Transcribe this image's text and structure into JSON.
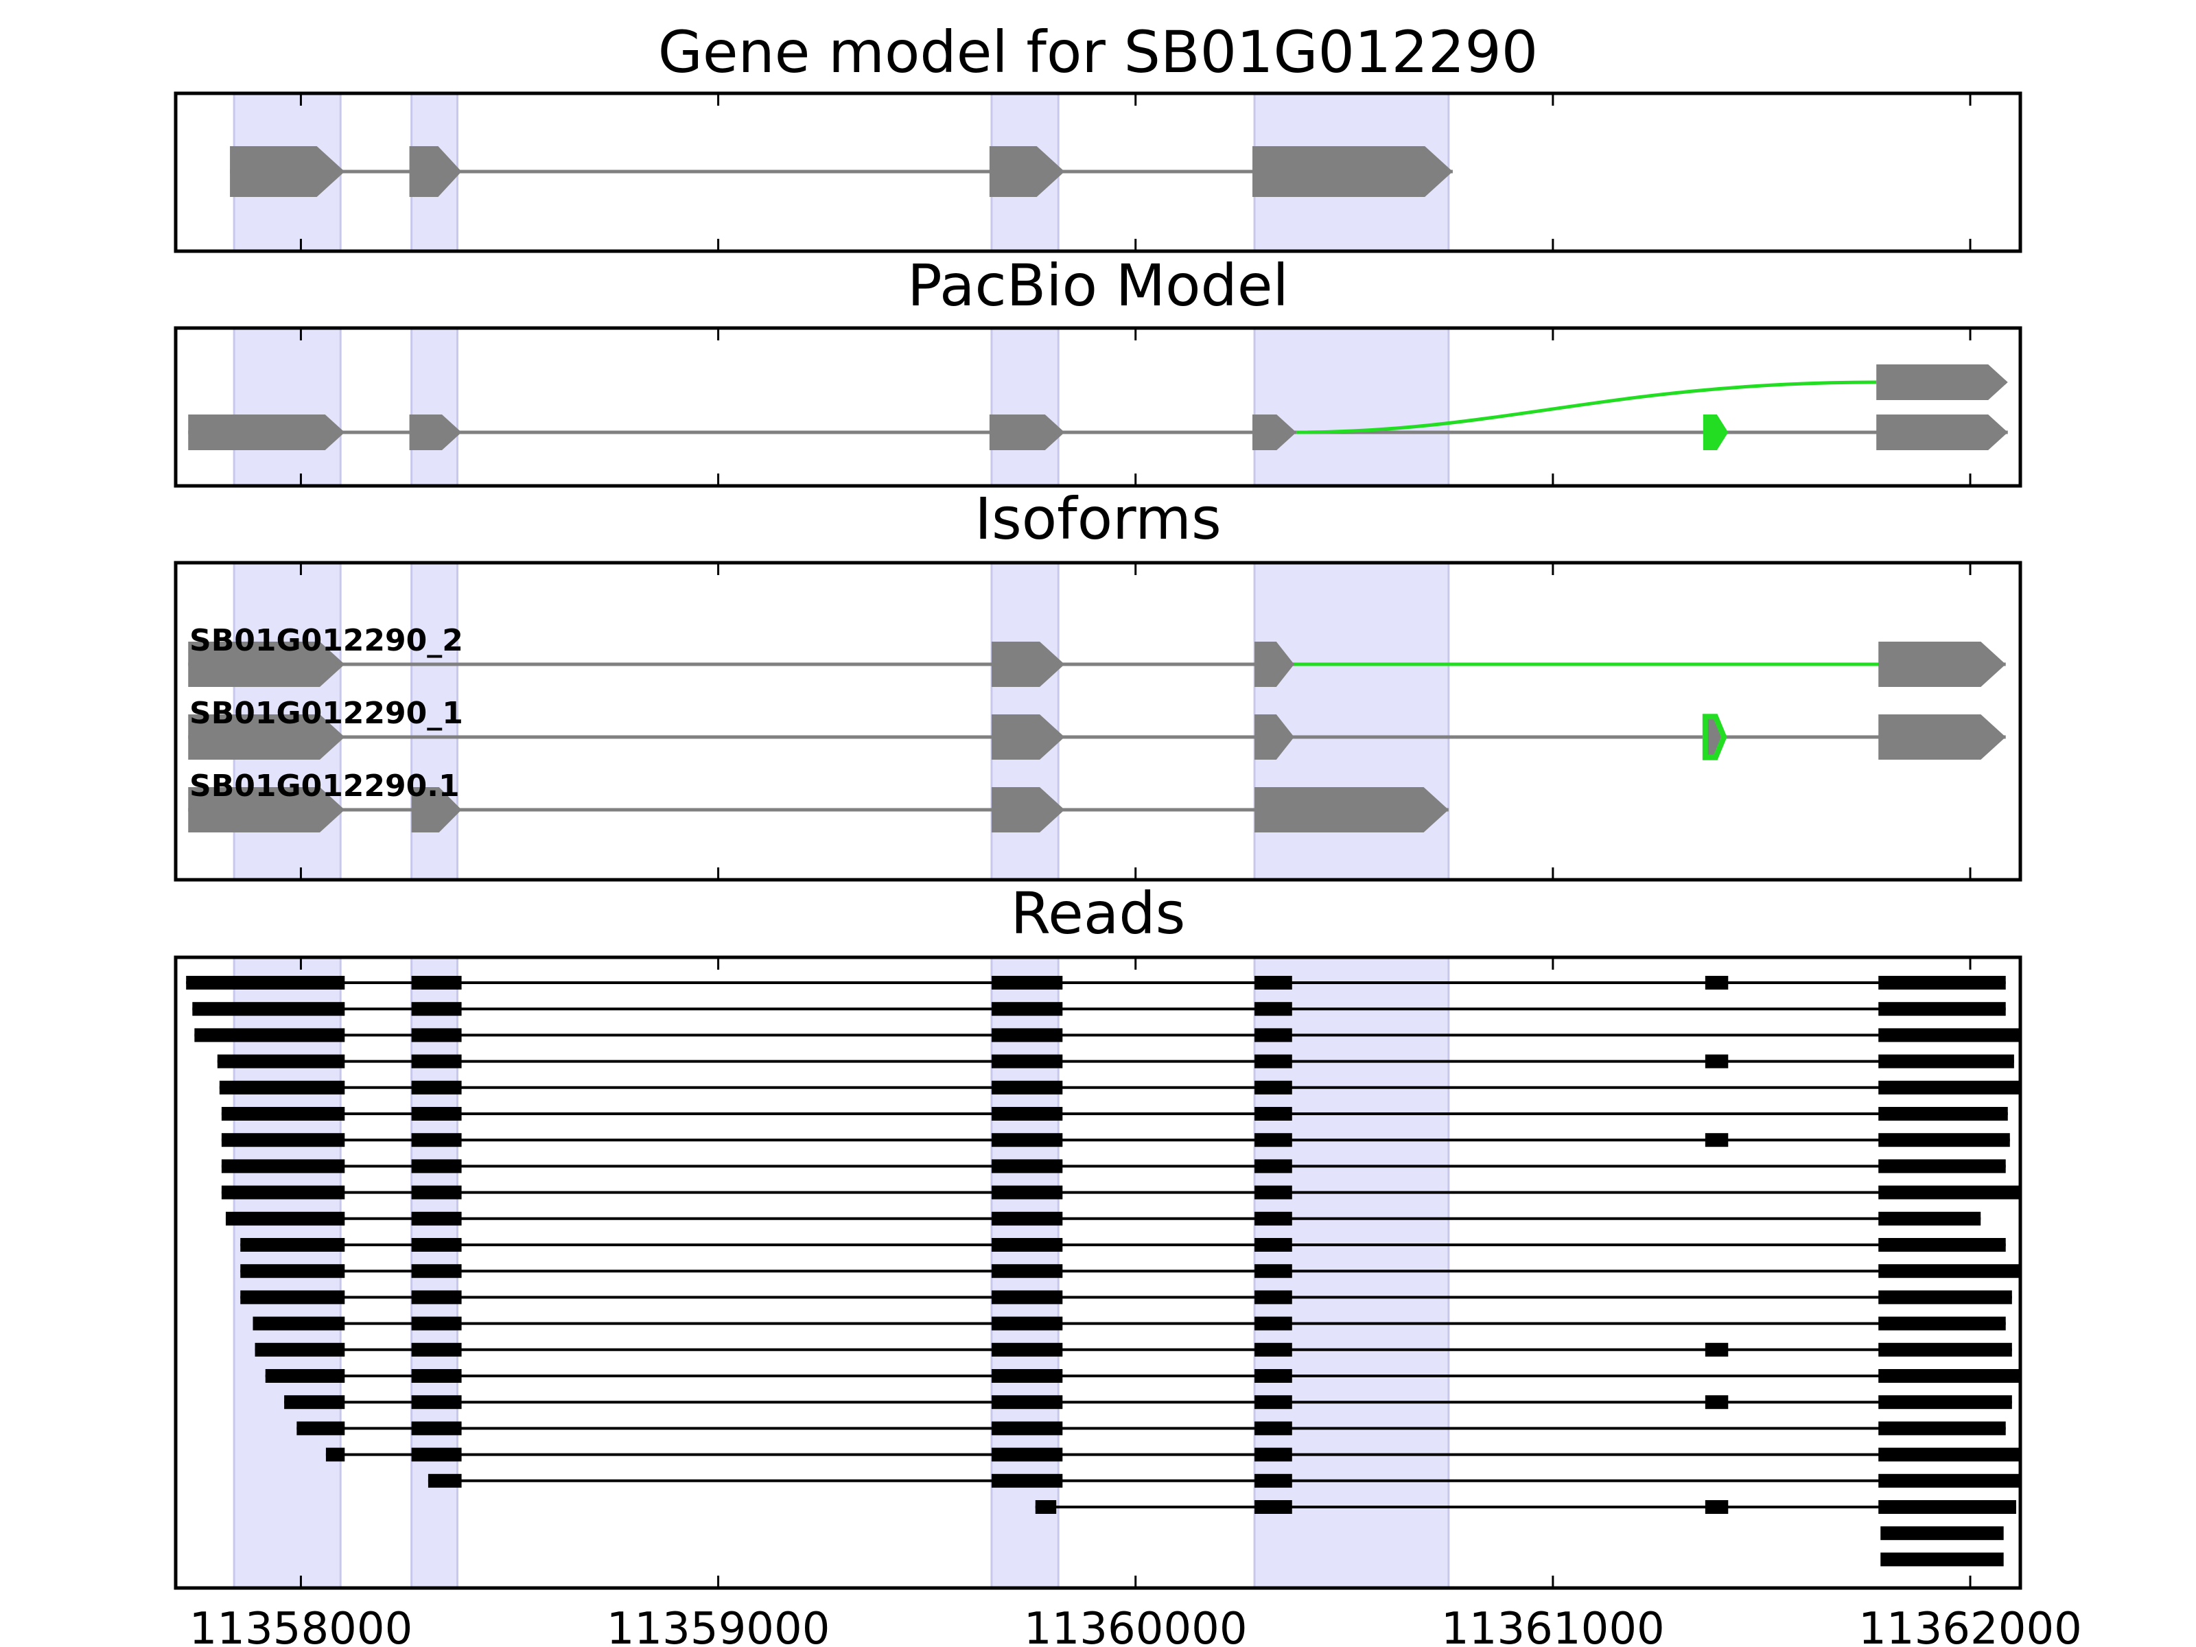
{
  "figure": {
    "panels": [
      {
        "id": "gene",
        "title": "Gene model for SB01G012290"
      },
      {
        "id": "pacbio",
        "title": "PacBio Model"
      },
      {
        "id": "isoforms",
        "title": "Isoforms"
      },
      {
        "id": "reads",
        "title": "Reads"
      }
    ],
    "x_axis": {
      "range": [
        11357700,
        11362120
      ],
      "ticks": [
        11358000,
        11359000,
        11360000,
        11361000,
        11362000
      ],
      "tick_labels": [
        "11358000",
        "11359000",
        "11360000",
        "11361000",
        "11362000"
      ]
    },
    "highlight_regions": [
      [
        11357840,
        11358095
      ],
      [
        11358265,
        11358375
      ],
      [
        11359655,
        11359815
      ],
      [
        11360285,
        11360750
      ]
    ],
    "gene_model": {
      "exons": [
        [
          11357830,
          11358105
        ],
        [
          11358260,
          11358385
        ],
        [
          11359650,
          11359830
        ],
        [
          11360280,
          11360760
        ]
      ]
    },
    "pacbio_model": {
      "main_exons": [
        [
          11357730,
          11358105
        ],
        [
          11358260,
          11358385
        ],
        [
          11359650,
          11359830
        ],
        [
          11360280,
          11360385
        ],
        [
          11361360,
          11361420
        ],
        [
          11361775,
          11362090
        ]
      ],
      "novel_exon": [
        11361360,
        11361420
      ],
      "alt_exon": [
        11361775,
        11362090
      ],
      "splice_start": 11360385
    },
    "isoforms": [
      {
        "label": "SB01G012290_2",
        "exons": [
          [
            11357730,
            11358105
          ],
          [
            11359655,
            11359830
          ],
          [
            11360285,
            11360380
          ],
          [
            11361780,
            11362085
          ]
        ],
        "novel_junction": [
          11360380,
          11361780
        ]
      },
      {
        "label": "SB01G012290_1",
        "exons": [
          [
            11357730,
            11358105
          ],
          [
            11359655,
            11359830
          ],
          [
            11360285,
            11360380
          ],
          [
            11361365,
            11361410
          ],
          [
            11361780,
            11362085
          ]
        ],
        "novel_exon": [
          11361365,
          11361410
        ]
      },
      {
        "label": "SB01G012290.1",
        "exons": [
          [
            11357730,
            11358105
          ],
          [
            11358265,
            11358385
          ],
          [
            11359655,
            11359830
          ],
          [
            11360285,
            11360750
          ]
        ]
      }
    ],
    "reads": [
      [
        [
          11357725,
          11358105
        ],
        [
          11358265,
          11358385
        ],
        [
          11359655,
          11359825
        ],
        [
          11360285,
          11360375
        ],
        [
          11361365,
          11361420
        ],
        [
          11361780,
          11362085
        ]
      ],
      [
        [
          11357740,
          11358105
        ],
        [
          11358265,
          11358385
        ],
        [
          11359655,
          11359825
        ],
        [
          11360285,
          11360375
        ],
        [
          11361780,
          11362085
        ]
      ],
      [
        [
          11357745,
          11358105
        ],
        [
          11358265,
          11358385
        ],
        [
          11359655,
          11359825
        ],
        [
          11360285,
          11360375
        ],
        [
          11361780,
          11362120
        ]
      ],
      [
        [
          11357800,
          11358105
        ],
        [
          11358265,
          11358385
        ],
        [
          11359655,
          11359825
        ],
        [
          11360285,
          11360375
        ],
        [
          11361365,
          11361420
        ],
        [
          11361780,
          11362105
        ]
      ],
      [
        [
          11357805,
          11358105
        ],
        [
          11358265,
          11358385
        ],
        [
          11359655,
          11359825
        ],
        [
          11360285,
          11360375
        ],
        [
          11361780,
          11362120
        ]
      ],
      [
        [
          11357810,
          11358105
        ],
        [
          11358265,
          11358385
        ],
        [
          11359655,
          11359825
        ],
        [
          11360285,
          11360375
        ],
        [
          11361780,
          11362090
        ]
      ],
      [
        [
          11357810,
          11358105
        ],
        [
          11358265,
          11358385
        ],
        [
          11359655,
          11359825
        ],
        [
          11360285,
          11360375
        ],
        [
          11361365,
          11361420
        ],
        [
          11361780,
          11362095
        ]
      ],
      [
        [
          11357810,
          11358105
        ],
        [
          11358265,
          11358385
        ],
        [
          11359655,
          11359825
        ],
        [
          11360285,
          11360375
        ],
        [
          11361780,
          11362085
        ]
      ],
      [
        [
          11357810,
          11358105
        ],
        [
          11358265,
          11358385
        ],
        [
          11359655,
          11359825
        ],
        [
          11360285,
          11360375
        ],
        [
          11361780,
          11362120
        ]
      ],
      [
        [
          11357820,
          11358105
        ],
        [
          11358265,
          11358385
        ],
        [
          11359655,
          11359825
        ],
        [
          11360285,
          11360375
        ],
        [
          11361780,
          11362025
        ]
      ],
      [
        [
          11357855,
          11358105
        ],
        [
          11358265,
          11358385
        ],
        [
          11359655,
          11359825
        ],
        [
          11360285,
          11360375
        ],
        [
          11361780,
          11362085
        ]
      ],
      [
        [
          11357855,
          11358105
        ],
        [
          11358265,
          11358385
        ],
        [
          11359655,
          11359825
        ],
        [
          11360285,
          11360375
        ],
        [
          11361780,
          11362120
        ]
      ],
      [
        [
          11357855,
          11358105
        ],
        [
          11358265,
          11358385
        ],
        [
          11359655,
          11359825
        ],
        [
          11360285,
          11360375
        ],
        [
          11361780,
          11362100
        ]
      ],
      [
        [
          11357885,
          11358105
        ],
        [
          11358265,
          11358385
        ],
        [
          11359655,
          11359825
        ],
        [
          11360285,
          11360375
        ],
        [
          11361780,
          11362085
        ]
      ],
      [
        [
          11357890,
          11358105
        ],
        [
          11358265,
          11358385
        ],
        [
          11359655,
          11359825
        ],
        [
          11360285,
          11360375
        ],
        [
          11361365,
          11361420
        ],
        [
          11361780,
          11362100
        ]
      ],
      [
        [
          11357915,
          11358105
        ],
        [
          11358265,
          11358385
        ],
        [
          11359655,
          11359825
        ],
        [
          11360285,
          11360375
        ],
        [
          11361780,
          11362120
        ]
      ],
      [
        [
          11357960,
          11358105
        ],
        [
          11358265,
          11358385
        ],
        [
          11359655,
          11359825
        ],
        [
          11360285,
          11360375
        ],
        [
          11361365,
          11361420
        ],
        [
          11361780,
          11362100
        ]
      ],
      [
        [
          11357990,
          11358105
        ],
        [
          11358265,
          11358385
        ],
        [
          11359655,
          11359825
        ],
        [
          11360285,
          11360375
        ],
        [
          11361780,
          11362085
        ]
      ],
      [
        [
          11358060,
          11358105
        ],
        [
          11358265,
          11358385
        ],
        [
          11359655,
          11359825
        ],
        [
          11360285,
          11360375
        ],
        [
          11361780,
          11362120
        ]
      ],
      [
        [
          11358305,
          11358385
        ],
        [
          11359655,
          11359825
        ],
        [
          11360285,
          11360375
        ],
        [
          11361780,
          11362120
        ]
      ],
      [
        [
          11359760,
          11359810
        ],
        [
          11360285,
          11360375
        ],
        [
          11361365,
          11361420
        ],
        [
          11361780,
          11362110
        ]
      ],
      [
        [
          11361785,
          11362080
        ]
      ],
      [
        [
          11361785,
          11362080
        ]
      ]
    ],
    "colors": {
      "exon": "#808080",
      "intron": "#808080",
      "novel": "#22dd22",
      "highlight": "#e3e3fb",
      "read": "#000000",
      "frame": "#000000"
    }
  }
}
